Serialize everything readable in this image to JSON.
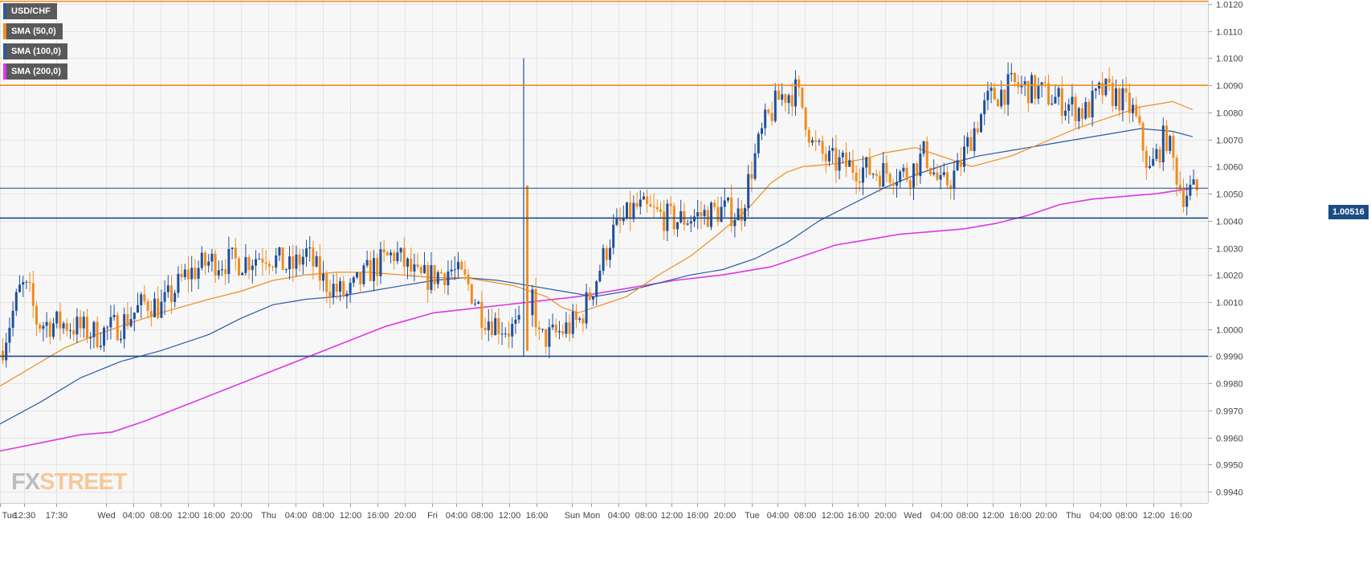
{
  "symbol": "USD/CHF",
  "legend": [
    {
      "label": "USD/CHF",
      "color": "#2a5aa5"
    },
    {
      "label": "SMA (50,0)",
      "color": "#f08c1e"
    },
    {
      "label": "SMA (100,0)",
      "color": "#2a5aa5"
    },
    {
      "label": "SMA (200,0)",
      "color": "#e036e6"
    }
  ],
  "current_price_label": "1.00516",
  "logo": {
    "part1": "FX",
    "part2": "STREET"
  },
  "colors": {
    "up": "#1f4f9a",
    "down": "#f08c1e",
    "sma50": "#f08c1e",
    "sma100": "#2a5aa5",
    "sma200": "#e036e6",
    "grid": "#e4e4e4",
    "background": "#f7f7f7"
  },
  "chart_data": {
    "type": "candlestick",
    "ylim": [
      0.9933,
      1.0122
    ],
    "yticks": [
      "1.0120",
      "1.0110",
      "1.0100",
      "1.0090",
      "1.0080",
      "1.0070",
      "1.0060",
      "1.0050",
      "1.0040",
      "1.0030",
      "1.0020",
      "1.0010",
      "1.0000",
      "0.9990",
      "0.9980",
      "0.9970",
      "0.9960",
      "0.9950",
      "0.9940"
    ],
    "xticks": [
      "Tue",
      "12:30",
      "17:30",
      "Wed",
      "04:00",
      "08:00",
      "12:00",
      "16:00",
      "20:00",
      "Thu",
      "04:00",
      "08:00",
      "12:00",
      "16:00",
      "20:00",
      "Fri",
      "04:00",
      "08:00",
      "12:00",
      "16:00",
      "Sun",
      "Mon",
      "04:00",
      "08:00",
      "12:00",
      "16:00",
      "20:00",
      "Tue",
      "04:00",
      "08:00",
      "12:00",
      "16:00",
      "20:00",
      "Wed",
      "04:00",
      "08:00",
      "12:00",
      "16:00",
      "20:00",
      "Thu",
      "04:00",
      "08:00",
      "12:00",
      "16:00"
    ],
    "horizontal_lines": [
      {
        "value": 1.0121,
        "color": "#f08c1e"
      },
      {
        "value": 1.009,
        "color": "#f08c1e"
      },
      {
        "value": 1.0052,
        "color": "#1c4c82"
      },
      {
        "value": 1.0041,
        "color": "#1c4c82"
      },
      {
        "value": 0.999,
        "color": "#1c4c82"
      }
    ],
    "price_anchors": [
      [
        0.0,
        0.9992
      ],
      [
        0.01,
        1.0002
      ],
      [
        0.025,
        1.0016
      ],
      [
        0.035,
        1.0013
      ],
      [
        0.045,
        1.0002
      ],
      [
        0.08,
        1.0002
      ],
      [
        0.12,
        0.9998
      ],
      [
        0.15,
        1.0002
      ],
      [
        0.18,
        1.001
      ],
      [
        0.2,
        1.0008
      ],
      [
        0.23,
        1.002
      ],
      [
        0.26,
        1.0025
      ],
      [
        0.3,
        1.0025
      ],
      [
        0.33,
        1.0028
      ],
      [
        0.36,
        1.0022
      ],
      [
        0.38,
        1.0028
      ],
      [
        0.4,
        1.0018
      ],
      [
        0.43,
        1.0012
      ],
      [
        0.46,
        1.0022
      ],
      [
        0.49,
        1.0028
      ],
      [
        0.52,
        1.0018
      ],
      [
        0.56,
        1.0022
      ],
      [
        0.58,
        1.0017
      ],
      [
        0.6,
        1.0005
      ],
      [
        0.63,
        1.0
      ],
      [
        0.65,
        1.0
      ],
      [
        0.66,
        1.0015
      ],
      [
        0.67,
        0.9996
      ],
      [
        0.69,
        0.9998
      ],
      [
        0.72,
        1.0003
      ],
      [
        0.74,
        1.0018
      ],
      [
        0.76,
        1.0035
      ],
      [
        0.79,
        1.0045
      ],
      [
        0.81,
        1.0043
      ],
      [
        0.84,
        1.004
      ],
      [
        0.87,
        1.0042
      ],
      [
        0.9,
        1.0044
      ],
      [
        0.92,
        1.0042
      ],
      [
        0.935,
        1.006
      ],
      [
        0.95,
        1.0075
      ],
      [
        0.97,
        1.0086
      ],
      [
        0.99,
        1.0088
      ],
      [
        1.0,
        1.008
      ],
      [
        1.01,
        1.0068
      ],
      [
        1.03,
        1.0062
      ],
      [
        1.06,
        1.006
      ],
      [
        1.09,
        1.0058
      ],
      [
        1.11,
        1.0058
      ],
      [
        1.13,
        1.0057
      ],
      [
        1.15,
        1.0065
      ],
      [
        1.17,
        1.0052
      ],
      [
        1.19,
        1.0058
      ],
      [
        1.21,
        1.0073
      ],
      [
        1.23,
        1.0085
      ],
      [
        1.26,
        1.009
      ],
      [
        1.29,
        1.0088
      ],
      [
        1.32,
        1.0084
      ],
      [
        1.35,
        1.008
      ],
      [
        1.37,
        1.0088
      ],
      [
        1.39,
        1.0086
      ],
      [
        1.41,
        1.008
      ],
      [
        1.43,
        1.0058
      ],
      [
        1.45,
        1.0072
      ],
      [
        1.47,
        1.005
      ],
      [
        1.48,
        1.0051
      ]
    ],
    "spikes": [
      {
        "t": 0.652,
        "high": 1.01,
        "low": 0.999
      },
      {
        "t": 0.654,
        "open": 1.0053,
        "close": 0.9992
      }
    ],
    "sma50": [
      [
        0.0,
        0.9979
      ],
      [
        0.04,
        0.9986
      ],
      [
        0.08,
        0.9993
      ],
      [
        0.12,
        0.9998
      ],
      [
        0.16,
        1.0002
      ],
      [
        0.2,
        1.0006
      ],
      [
        0.26,
        1.0011
      ],
      [
        0.3,
        1.0014
      ],
      [
        0.34,
        1.0018
      ],
      [
        0.38,
        1.002
      ],
      [
        0.42,
        1.0021
      ],
      [
        0.46,
        1.0021
      ],
      [
        0.5,
        1.002
      ],
      [
        0.54,
        1.0019
      ],
      [
        0.58,
        1.0019
      ],
      [
        0.6,
        1.0018
      ],
      [
        0.64,
        1.0016
      ],
      [
        0.68,
        1.0012
      ],
      [
        0.7,
        1.0008
      ],
      [
        0.72,
        1.0006
      ],
      [
        0.74,
        1.0008
      ],
      [
        0.78,
        1.0012
      ],
      [
        0.82,
        1.002
      ],
      [
        0.86,
        1.0027
      ],
      [
        0.89,
        1.0034
      ],
      [
        0.93,
        1.0044
      ],
      [
        0.96,
        1.0054
      ],
      [
        0.98,
        1.0058
      ],
      [
        1.0,
        1.006
      ],
      [
        1.04,
        1.0061
      ],
      [
        1.08,
        1.0063
      ],
      [
        1.1,
        1.0065
      ],
      [
        1.12,
        1.0066
      ],
      [
        1.14,
        1.0067
      ],
      [
        1.18,
        1.0063
      ],
      [
        1.21,
        1.006
      ],
      [
        1.26,
        1.0064
      ],
      [
        1.3,
        1.0069
      ],
      [
        1.34,
        1.0074
      ],
      [
        1.38,
        1.0078
      ],
      [
        1.42,
        1.0082
      ],
      [
        1.46,
        1.0084
      ],
      [
        1.485,
        1.0081
      ]
    ],
    "sma100": [
      [
        0.0,
        0.9965
      ],
      [
        0.05,
        0.9973
      ],
      [
        0.1,
        0.9982
      ],
      [
        0.15,
        0.9988
      ],
      [
        0.2,
        0.9992
      ],
      [
        0.26,
        0.9998
      ],
      [
        0.3,
        1.0004
      ],
      [
        0.34,
        1.0009
      ],
      [
        0.38,
        1.0011
      ],
      [
        0.42,
        1.0012
      ],
      [
        0.46,
        1.0014
      ],
      [
        0.5,
        1.0016
      ],
      [
        0.54,
        1.0018
      ],
      [
        0.58,
        1.0019
      ],
      [
        0.62,
        1.0018
      ],
      [
        0.66,
        1.0016
      ],
      [
        0.7,
        1.0014
      ],
      [
        0.74,
        1.0012
      ],
      [
        0.78,
        1.0014
      ],
      [
        0.82,
        1.0017
      ],
      [
        0.86,
        1.002
      ],
      [
        0.9,
        1.0022
      ],
      [
        0.94,
        1.0026
      ],
      [
        0.98,
        1.0032
      ],
      [
        1.02,
        1.004
      ],
      [
        1.06,
        1.0046
      ],
      [
        1.1,
        1.0052
      ],
      [
        1.14,
        1.0057
      ],
      [
        1.18,
        1.0061
      ],
      [
        1.22,
        1.0064
      ],
      [
        1.26,
        1.0066
      ],
      [
        1.3,
        1.0068
      ],
      [
        1.34,
        1.007
      ],
      [
        1.38,
        1.0072
      ],
      [
        1.42,
        1.0074
      ],
      [
        1.46,
        1.0073
      ],
      [
        1.485,
        1.0071
      ]
    ],
    "sma200": [
      [
        0.0,
        0.9955
      ],
      [
        0.05,
        0.9958
      ],
      [
        0.1,
        0.9961
      ],
      [
        0.14,
        0.9962
      ],
      [
        0.18,
        0.9966
      ],
      [
        0.24,
        0.9973
      ],
      [
        0.3,
        0.998
      ],
      [
        0.36,
        0.9987
      ],
      [
        0.42,
        0.9994
      ],
      [
        0.48,
        1.0001
      ],
      [
        0.54,
        1.0006
      ],
      [
        0.6,
        1.0008
      ],
      [
        0.66,
        1.001
      ],
      [
        0.72,
        1.0012
      ],
      [
        0.78,
        1.0015
      ],
      [
        0.84,
        1.0018
      ],
      [
        0.9,
        1.002
      ],
      [
        0.96,
        1.0023
      ],
      [
        1.0,
        1.0027
      ],
      [
        1.04,
        1.0031
      ],
      [
        1.08,
        1.0033
      ],
      [
        1.12,
        1.0035
      ],
      [
        1.16,
        1.0036
      ],
      [
        1.2,
        1.0037
      ],
      [
        1.24,
        1.0039
      ],
      [
        1.28,
        1.0042
      ],
      [
        1.32,
        1.0046
      ],
      [
        1.36,
        1.0048
      ],
      [
        1.4,
        1.0049
      ],
      [
        1.44,
        1.005
      ],
      [
        1.485,
        1.0052
      ]
    ]
  }
}
